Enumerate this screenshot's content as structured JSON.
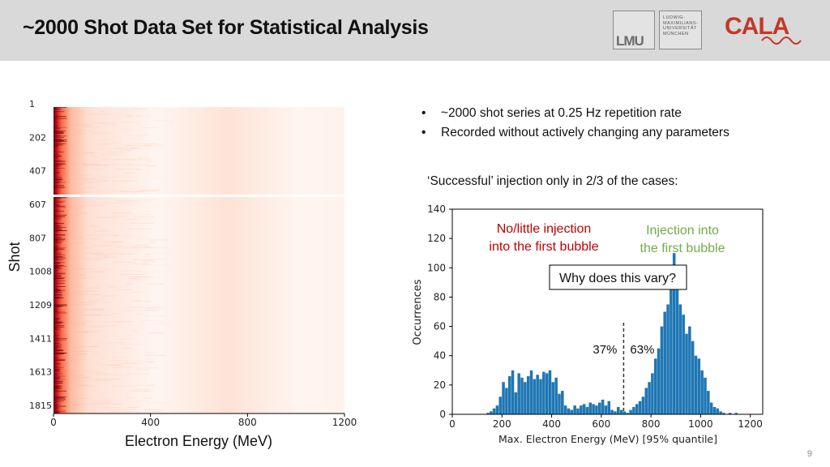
{
  "slide": {
    "title": "~2000 Shot Data Set for Statistical Analysis",
    "page_number": "9"
  },
  "logos": {
    "lmu_mark": "LMU",
    "lmu_text": [
      "LUDWIG-",
      "MAXIMILIANS-",
      "UNIVERSITÄT",
      "MÜNCHEN"
    ],
    "cala_text": "CALA",
    "cala_color": "#c0392b"
  },
  "bullets": [
    "~2000 shot series at 0.25 Hz repetition rate",
    "Recorded without actively changing any parameters"
  ],
  "note": "‘Successful’ injection only in 2/3 of the cases:",
  "chart_data": [
    {
      "type": "heatmap",
      "xlabel": "Electron Energy (MeV)",
      "ylabel": "Shot",
      "x_ticks": [
        0,
        400,
        800,
        1200
      ],
      "xlim": [
        0,
        1200
      ],
      "y_ticks": [
        "1",
        "202",
        "407",
        "607",
        "807",
        "1008",
        "1209",
        "1411",
        "1613",
        "1815"
      ],
      "colormap": [
        "#fff5f0",
        "#fcbba1",
        "#fb6a4a",
        "#cb181d",
        "#67000d"
      ]
    },
    {
      "type": "bar",
      "xlabel": "Max. Electron Energy (MeV) [95% quantile]",
      "ylabel": "Occurrences",
      "xlim": [
        0,
        1250
      ],
      "ylim": [
        0,
        140
      ],
      "x_ticks": [
        0,
        200,
        400,
        600,
        800,
        1000,
        1200
      ],
      "y_ticks": [
        0,
        20,
        40,
        60,
        80,
        100,
        120,
        140
      ],
      "bar_color": "#1f77b4",
      "bin_width": 12.5,
      "bin_start": 137.5,
      "values": [
        1,
        2,
        4,
        6,
        12,
        22,
        18,
        26,
        30,
        15,
        28,
        25,
        22,
        26,
        30,
        24,
        27,
        24,
        29,
        28,
        30,
        22,
        25,
        14,
        16,
        6,
        4,
        3,
        6,
        4,
        6,
        7,
        5,
        8,
        7,
        6,
        8,
        10,
        6,
        9,
        3,
        2,
        5,
        3,
        2,
        1,
        3,
        5,
        7,
        9,
        12,
        18,
        22,
        28,
        38,
        45,
        60,
        70,
        75,
        90,
        110,
        95,
        75,
        68,
        55,
        60,
        50,
        40,
        38,
        30,
        25,
        16,
        8,
        5,
        4,
        2,
        1,
        0,
        1,
        0,
        1
      ],
      "divider_x": 690,
      "annotations": {
        "left_label_line1": "No/little injection",
        "left_label_line2": "into the first bubble",
        "left_color": "#c00000",
        "right_label_line1": "Injection into",
        "right_label_line2": "the first bubble",
        "right_color": "#70ad47",
        "question": "Why does this vary?",
        "left_percent": "37%",
        "right_percent": "63%"
      }
    }
  ]
}
